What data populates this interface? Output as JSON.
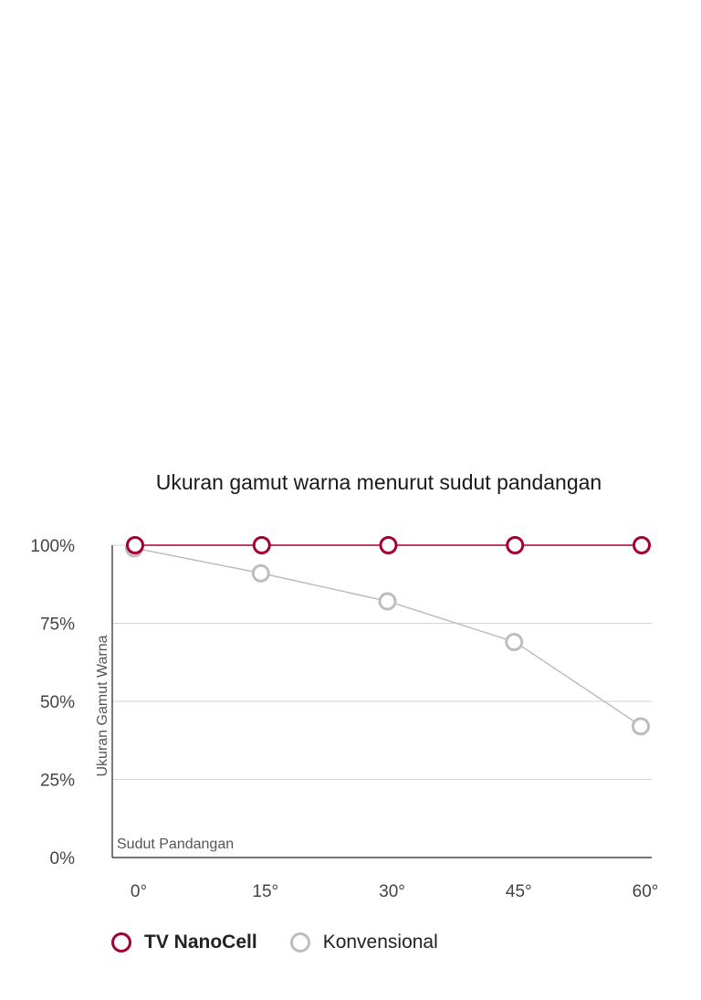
{
  "chart_data": {
    "type": "line",
    "title": "Ukuran gamut warna menurut sudut pandangan",
    "ylabel": "Ukuran Gamut Warna",
    "xlabel": "Sudut Pandangan",
    "x": [
      "0°",
      "15°",
      "30°",
      "45°",
      "60°"
    ],
    "y_ticks": [
      "0%",
      "25%",
      "50%",
      "75%",
      "100%"
    ],
    "ylim": [
      0,
      100
    ],
    "grid": true,
    "legend_position": "bottom-left",
    "series": [
      {
        "name": "TV NanoCell",
        "values": [
          100,
          100,
          100,
          100,
          100
        ],
        "color": "#a50034"
      },
      {
        "name": "Konvensional",
        "values": [
          99,
          91,
          82,
          69,
          42
        ],
        "color": "#bdbdbd"
      }
    ]
  }
}
